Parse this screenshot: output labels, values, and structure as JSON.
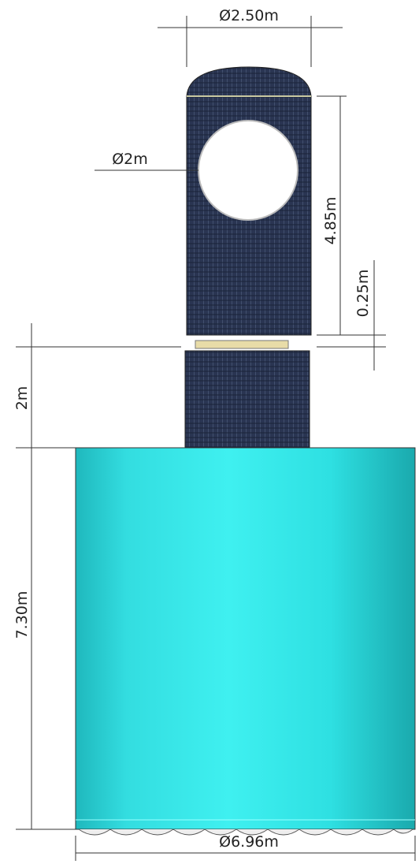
{
  "dimensions": {
    "top_diameter": "Ø2.50m",
    "window_diameter": "Ø2m",
    "upper_height": "4.85m",
    "gap_height": "0.25m",
    "lower_height": "2m",
    "base_height": "7.30m",
    "base_diameter": "Ø6.96m"
  }
}
